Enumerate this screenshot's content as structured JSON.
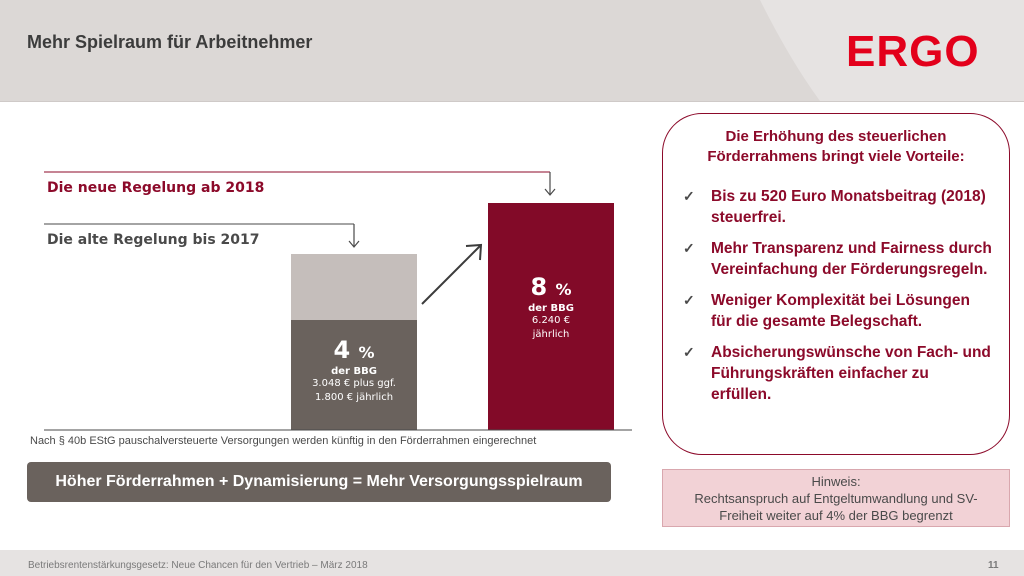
{
  "header": {
    "title": "Mehr Spielraum für Arbeitnehmer",
    "logo_text": "ERGO",
    "brand_color": "#e3001b"
  },
  "chart": {
    "label_new": "Die neue Regelung ab 2018",
    "label_old": "Die alte Regelung bis 2017",
    "bar_old": {
      "pct": "4",
      "pct_sign": "%",
      "sub": "der BBG",
      "value_line1": "3.048 € plus ggf.",
      "value_line2": "1.800 € jährlich"
    },
    "bar_new": {
      "pct": "8",
      "pct_sign": "%",
      "sub": "der BBG",
      "value_line1": "6.240 €",
      "value_line2": "jährlich"
    },
    "colors": {
      "new": "#820a28",
      "old_dark": "#6a625d",
      "old_light": "#c5bebb"
    }
  },
  "footnote": "Nach § 40b EStG pauschalversteuerte Versorgungen werden künftig in den Förderrahmen eingerechnet",
  "formula": "Höher Förderrahmen + Dynamisierung = Mehr Versorgungsspielraum",
  "benefits": {
    "title_line1": "Die Erhöhung des steuerlichen",
    "title_line2": "Förderrahmens bringt viele Vorteile:",
    "items": [
      "Bis zu 520 Euro Monatsbeitrag (2018) steuerfrei.",
      "Mehr Transparenz und Fairness durch Vereinfachung der Förderungsregeln.",
      "Weniger Komplexität bei Lösungen für die gesamte Belegschaft.",
      "Absicherungswünsche von Fach- und Führungskräften einfacher zu erfüllen."
    ]
  },
  "note": {
    "line1": "Hinweis:",
    "line2": "Rechtsanspruch auf Entgeltumwandlung und SV-",
    "line3": "Freiheit weiter auf 4% der BBG begrenzt"
  },
  "footer": {
    "text": "Betriebsrentenstärkungsgesetz: Neue Chancen für den Vertrieb – März 2018",
    "page": "11"
  }
}
